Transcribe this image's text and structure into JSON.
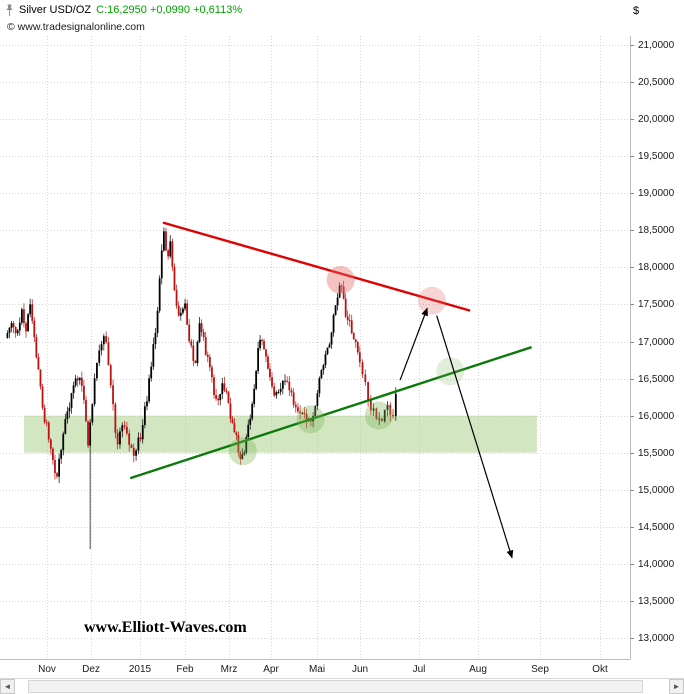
{
  "header": {
    "title": "Silver USD/OZ",
    "quote": "C:16,2950 +0,0990 +0,6113%",
    "quote_color": "#00a400",
    "copyright": "© www.tradesignalonline.com",
    "currency_symbol": "$"
  },
  "watermark": "www.Elliott-Waves.com",
  "scrollbar": {
    "left": "◄",
    "right": "►"
  },
  "chart_data": {
    "type": "candlestick",
    "title": "Silver USD/OZ",
    "unit": "USD/OZ",
    "last_close": 16.295,
    "last_change": 0.099,
    "last_change_pct": 0.6113,
    "y_axis": {
      "min": 13.0,
      "max": 21.0,
      "step": 0.5,
      "tick_labels": [
        "21,0000",
        "20,5000",
        "20,0000",
        "19,5000",
        "19,0000",
        "18,5000",
        "18,0000",
        "17,5000",
        "17,0000",
        "16,5000",
        "16,0000",
        "15,5000",
        "15,0000",
        "14,5000",
        "14,0000",
        "13,5000",
        "13,0000"
      ]
    },
    "x_axis": {
      "tick_labels": [
        "Nov",
        "Dez",
        "2015",
        "Feb",
        "Mrz",
        "Apr",
        "Mai",
        "Jun",
        "Jul",
        "Aug",
        "Sep",
        "Okt"
      ]
    },
    "price_path": [
      [
        -0.9,
        17.05
      ],
      [
        -0.8,
        17.28
      ],
      [
        -0.7,
        17.1
      ],
      [
        -0.58,
        17.38
      ],
      [
        -0.48,
        17.15
      ],
      [
        -0.38,
        17.48
      ],
      [
        -0.28,
        17.05
      ],
      [
        -0.18,
        16.55
      ],
      [
        -0.08,
        16.05
      ],
      [
        0.05,
        15.7
      ],
      [
        0.15,
        15.35
      ],
      [
        0.22,
        15.08
      ],
      [
        0.33,
        15.65
      ],
      [
        0.46,
        16.05
      ],
      [
        0.6,
        16.4
      ],
      [
        0.74,
        16.5
      ],
      [
        0.84,
        16.2
      ],
      [
        0.93,
        15.6
      ],
      [
        1.0,
        15.95
      ],
      [
        1.08,
        16.55
      ],
      [
        1.18,
        16.85
      ],
      [
        1.28,
        17.12
      ],
      [
        1.4,
        16.45
      ],
      [
        1.52,
        15.6
      ],
      [
        1.64,
        15.9
      ],
      [
        1.76,
        15.65
      ],
      [
        1.88,
        15.52
      ],
      [
        2.0,
        15.7
      ],
      [
        2.12,
        16.1
      ],
      [
        2.25,
        16.7
      ],
      [
        2.38,
        17.35
      ],
      [
        2.47,
        18.1
      ],
      [
        2.53,
        18.52
      ],
      [
        2.6,
        18.05
      ],
      [
        2.67,
        18.3
      ],
      [
        2.77,
        17.72
      ],
      [
        2.88,
        17.3
      ],
      [
        2.99,
        17.52
      ],
      [
        3.1,
        17.02
      ],
      [
        3.22,
        16.7
      ],
      [
        3.35,
        17.28
      ],
      [
        3.48,
        16.85
      ],
      [
        3.6,
        16.48
      ],
      [
        3.74,
        16.15
      ],
      [
        3.87,
        16.48
      ],
      [
        4.0,
        16.08
      ],
      [
        4.13,
        15.78
      ],
      [
        4.25,
        15.5
      ],
      [
        4.34,
        15.38
      ],
      [
        4.46,
        15.85
      ],
      [
        4.59,
        16.35
      ],
      [
        4.72,
        17.1
      ],
      [
        4.86,
        16.78
      ],
      [
        5.0,
        16.45
      ],
      [
        5.14,
        16.2
      ],
      [
        5.29,
        16.55
      ],
      [
        5.44,
        16.28
      ],
      [
        5.59,
        16.08
      ],
      [
        5.74,
        16.0
      ],
      [
        5.87,
        15.88
      ],
      [
        6.0,
        16.32
      ],
      [
        6.14,
        16.62
      ],
      [
        6.29,
        17.02
      ],
      [
        6.44,
        17.55
      ],
      [
        6.55,
        17.8
      ],
      [
        6.66,
        17.38
      ],
      [
        6.78,
        17.18
      ],
      [
        6.9,
        16.98
      ],
      [
        7.02,
        16.68
      ],
      [
        7.13,
        16.24
      ],
      [
        7.23,
        16.04
      ],
      [
        7.33,
        15.93
      ],
      [
        7.45,
        16.12
      ],
      [
        7.56,
        16.03
      ],
      [
        7.62,
        16.295
      ]
    ],
    "spike": {
      "t": 1.02,
      "low": 14.2
    },
    "overlays": {
      "support_zone": {
        "t1": -0.52,
        "t2": 9.95,
        "price_low": 15.5,
        "price_high": 16.0,
        "color": "rgba(166,205,134,0.5)"
      },
      "trendlines": [
        {
          "name": "falling-resistance",
          "color": "#e00000",
          "from": [
            2.53,
            18.6
          ],
          "to": [
            8.85,
            17.42
          ]
        },
        {
          "name": "rising-support",
          "color": "#0b7a0b",
          "from": [
            1.82,
            15.16
          ],
          "to": [
            9.85,
            16.92
          ]
        }
      ],
      "circles": [
        {
          "name": "support-touch-1",
          "t": 4.33,
          "price": 15.52,
          "color": "rgba(124,179,82,0.35)"
        },
        {
          "name": "support-touch-2",
          "t": 5.86,
          "price": 15.95,
          "color": "rgba(124,179,82,0.35)"
        },
        {
          "name": "support-touch-3",
          "t": 7.32,
          "price": 16.0,
          "color": "rgba(124,179,82,0.35)"
        },
        {
          "name": "support-touch-target",
          "t": 8.53,
          "price": 16.6,
          "color": "rgba(124,179,82,0.22)"
        },
        {
          "name": "resistance-touch-1",
          "t": 6.55,
          "price": 17.83,
          "color": "rgba(229,103,103,0.40)"
        },
        {
          "name": "resistance-touch-target",
          "t": 8.22,
          "price": 17.55,
          "color": "rgba(229,103,103,0.28)"
        }
      ],
      "arrows": [
        {
          "name": "projection-up-arrow",
          "from": [
            7.68,
            16.48
          ],
          "to": [
            8.14,
            17.45
          ]
        },
        {
          "name": "projection-down-arrow",
          "from": [
            8.3,
            17.35
          ],
          "to": [
            9.55,
            14.08
          ]
        }
      ]
    }
  }
}
